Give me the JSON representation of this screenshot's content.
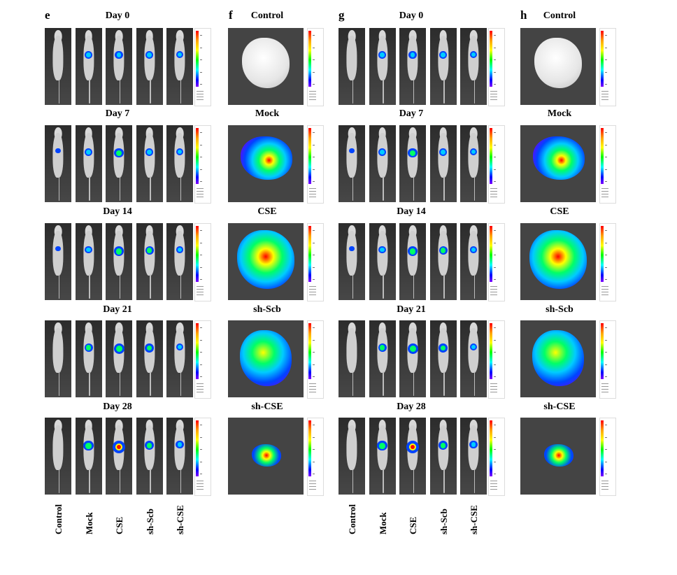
{
  "panels": {
    "e": {
      "letter": "e",
      "days": [
        "Day 0",
        "Day 7",
        "Day 14",
        "Day 21",
        "Day 28"
      ]
    },
    "f": {
      "letter": "f",
      "tissues": [
        "Control",
        "Mock",
        "CSE",
        "sh-Scb",
        "sh-CSE"
      ]
    },
    "g": {
      "letter": "g",
      "days": [
        "Day 0",
        "Day 7",
        "Day 14",
        "Day 21",
        "Day 28"
      ]
    },
    "h": {
      "letter": "h",
      "tissues": [
        "Control",
        "Mock",
        "CSE",
        "sh-Scb",
        "sh-CSE"
      ]
    }
  },
  "groups": [
    "Control",
    "Mock",
    "CSE",
    "sh-Scb",
    "sh-CSE"
  ],
  "colors": {
    "colorbar": [
      "#ff0000",
      "#ffa500",
      "#ffff00",
      "#00ff00",
      "#00ffff",
      "#0000ff",
      "#8000ff"
    ],
    "background": "#3a3a3a",
    "mouse": "#cfcfcf"
  }
}
